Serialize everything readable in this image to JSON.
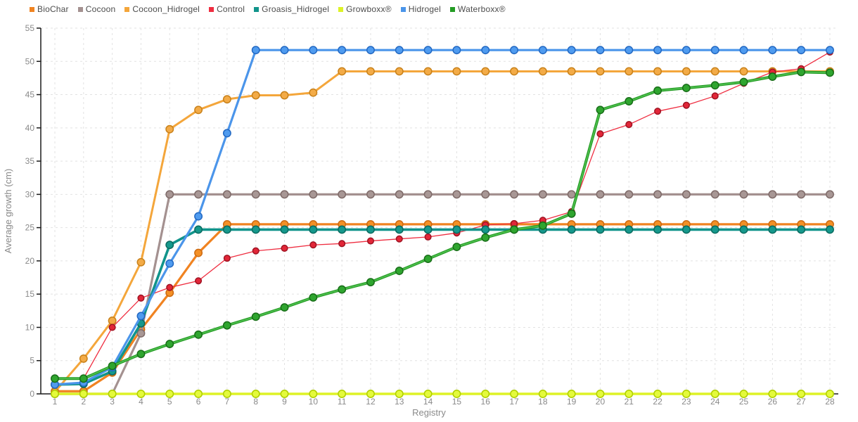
{
  "chart_data": {
    "type": "line",
    "title": "",
    "xlabel": "Registry",
    "ylabel": "Average growth (cm)",
    "x": [
      1,
      2,
      3,
      4,
      5,
      6,
      7,
      8,
      9,
      10,
      11,
      12,
      13,
      14,
      15,
      16,
      17,
      18,
      19,
      20,
      21,
      22,
      23,
      24,
      25,
      26,
      27,
      28
    ],
    "ylim": [
      0,
      55
    ],
    "ytick_step": 5,
    "grid": true,
    "legend_position": "top-left",
    "series": [
      {
        "name": "BioChar",
        "line_color": "#f08321",
        "dot_fill": "#f49026",
        "dot_stroke": "#cc6a12",
        "line_width": 3.2,
        "dot_radius": 5.2,
        "values": [
          0.4,
          0.4,
          3.2,
          9.7,
          15.2,
          21.2,
          25.5,
          25.5,
          25.5,
          25.5,
          25.5,
          25.5,
          25.5,
          25.5,
          25.5,
          25.5,
          25.5,
          25.5,
          25.5,
          25.5,
          25.5,
          25.5,
          25.5,
          25.5,
          25.5,
          25.5,
          25.5,
          25.5
        ]
      },
      {
        "name": "Cocoon",
        "line_color": "#a49190",
        "dot_fill": "#a89795",
        "dot_stroke": "#7f6b69",
        "line_width": 3.2,
        "dot_radius": 5.2,
        "values": [
          0,
          0,
          0,
          9.1,
          30,
          30,
          30,
          30,
          30,
          30,
          30,
          30,
          30,
          30,
          30,
          30,
          30,
          30,
          30,
          30,
          30,
          30,
          30,
          30,
          30,
          30,
          30,
          30
        ]
      },
      {
        "name": "Cocoon_Hidrogel",
        "line_color": "#f4a63b",
        "dot_fill": "#f3ab47",
        "dot_stroke": "#c8811a",
        "line_width": 3.0,
        "dot_radius": 5.2,
        "values": [
          0.3,
          5.3,
          11,
          19.8,
          39.8,
          42.7,
          44.3,
          44.9,
          44.9,
          45.3,
          48.5,
          48.5,
          48.5,
          48.5,
          48.5,
          48.5,
          48.5,
          48.5,
          48.5,
          48.5,
          48.5,
          48.5,
          48.5,
          48.5,
          48.5,
          48.5,
          48.5,
          48.5
        ]
      },
      {
        "name": "Control",
        "line_color": "#ef2d40",
        "dot_fill": "#e22638",
        "dot_stroke": "#9e1322",
        "line_width": 1.3,
        "dot_radius": 4.3,
        "values": [
          2.3,
          2.3,
          10,
          14.4,
          16,
          17,
          20.4,
          21.5,
          21.9,
          22.4,
          22.6,
          23,
          23.3,
          23.6,
          24.2,
          25.4,
          25.6,
          26.1,
          27.4,
          39.1,
          40.5,
          42.5,
          43.4,
          44.8,
          46.7,
          48.4,
          48.9,
          51.4
        ]
      },
      {
        "name": "Groasis_Hidrogel",
        "line_color": "#11948b",
        "dot_fill": "#16988c",
        "dot_stroke": "#0a6b60",
        "line_width": 3.6,
        "dot_radius": 5.2,
        "values": [
          1.4,
          1.5,
          3.4,
          10.6,
          22.4,
          24.7,
          24.7,
          24.7,
          24.7,
          24.7,
          24.7,
          24.7,
          24.7,
          24.7,
          24.7,
          24.7,
          24.7,
          24.7,
          24.7,
          24.7,
          24.7,
          24.7,
          24.7,
          24.7,
          24.7,
          24.7,
          24.7,
          24.7
        ]
      },
      {
        "name": "Growboxx®",
        "line_color": "#ddf226",
        "dot_fill": "#e4fa3c",
        "dot_stroke": "#b0cf00",
        "line_width": 3.6,
        "dot_radius": 5.2,
        "values": [
          0,
          0,
          0,
          0,
          0,
          0,
          0,
          0,
          0,
          0,
          0,
          0,
          0,
          0,
          0,
          0,
          0,
          0,
          0,
          0,
          0,
          0,
          0,
          0,
          0,
          0,
          0,
          0
        ]
      },
      {
        "name": "Hidrogel",
        "line_color": "#4b95ea",
        "dot_fill": "#4f9bef",
        "dot_stroke": "#2268c2",
        "line_width": 3.2,
        "dot_radius": 5.2,
        "values": [
          1.4,
          1.7,
          4,
          11.7,
          19.6,
          26.7,
          39.2,
          51.7,
          51.7,
          51.7,
          51.7,
          51.7,
          51.7,
          51.7,
          51.7,
          51.7,
          51.7,
          51.7,
          51.7,
          51.7,
          51.7,
          51.7,
          51.7,
          51.7,
          51.7,
          51.7,
          51.7,
          51.7
        ]
      },
      {
        "name": "Waterboxx®",
        "line_color": "#249c24",
        "overlay_color": "#52c152",
        "dot_fill": "#2fa52f",
        "dot_stroke": "#186e18",
        "line_width": 4.0,
        "dot_radius": 5.2,
        "values": [
          2.3,
          2.3,
          4.2,
          6,
          7.5,
          8.9,
          10.3,
          11.6,
          13,
          14.5,
          15.7,
          16.8,
          18.5,
          20.3,
          22.1,
          23.5,
          24.7,
          25.3,
          27.1,
          42.7,
          44,
          45.6,
          46,
          46.4,
          46.9,
          47.7,
          48.4,
          48.3
        ]
      }
    ]
  },
  "style": {
    "background": "#ffffff",
    "axis_color": "#1a1a1a",
    "grid_color": "#e2e2e2",
    "tick_label_color": "#8a8a8a",
    "legend_text_color": "#4c4c4c"
  }
}
